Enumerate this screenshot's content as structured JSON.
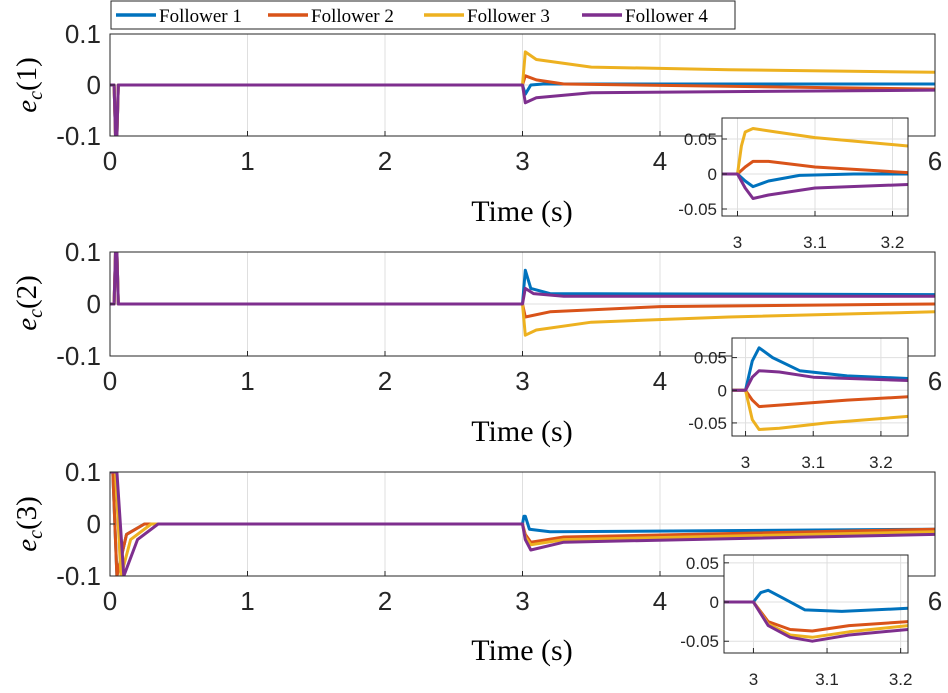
{
  "legend": {
    "entries": [
      {
        "label": "Follower 1",
        "color": "#0072BD"
      },
      {
        "label": "Follower 2",
        "color": "#D95319"
      },
      {
        "label": "Follower 3",
        "color": "#EDB120"
      },
      {
        "label": "Follower 4",
        "color": "#7E2F8E"
      }
    ]
  },
  "chart_data": [
    {
      "type": "line",
      "ylabel_main": "e",
      "ylabel_sub": "c",
      "ylabel_paren": "(1)",
      "xlabel": "Time (s)",
      "xlim": [
        0,
        6
      ],
      "ylim": [
        -0.1,
        0.1
      ],
      "xticks": [
        "0",
        "1",
        "2",
        "3",
        "4",
        "6"
      ],
      "xtick_values": [
        0,
        1,
        2,
        3,
        4,
        6
      ],
      "yticks": [
        "0.1",
        "0",
        "-0.1"
      ],
      "ytick_values": [
        0.1,
        0,
        -0.1
      ],
      "series": [
        {
          "name": "Follower 1",
          "x": [
            0,
            0.03,
            0.04,
            0.05,
            0.06,
            0.2,
            3.0,
            3.02,
            3.06,
            3.15,
            6
          ],
          "y": [
            0,
            0,
            -0.1,
            -0.1,
            0,
            0,
            0,
            -0.018,
            0,
            0.002,
            0.002
          ]
        },
        {
          "name": "Follower 2",
          "x": [
            0,
            0.03,
            0.04,
            0.05,
            0.06,
            0.2,
            3.0,
            3.02,
            3.1,
            3.3,
            6
          ],
          "y": [
            0,
            0,
            -0.1,
            -0.1,
            0,
            0,
            0,
            0.018,
            0.01,
            0.002,
            -0.008
          ]
        },
        {
          "name": "Follower 3",
          "x": [
            0,
            0.03,
            0.04,
            0.05,
            0.06,
            0.2,
            3.0,
            3.02,
            3.1,
            3.5,
            4.5,
            6
          ],
          "y": [
            0,
            0,
            -0.1,
            -0.1,
            0,
            0,
            0,
            0.065,
            0.05,
            0.035,
            0.03,
            0.025
          ]
        },
        {
          "name": "Follower 4",
          "x": [
            0,
            0.03,
            0.04,
            0.05,
            0.06,
            0.2,
            3.0,
            3.02,
            3.1,
            3.5,
            6
          ],
          "y": [
            0,
            0,
            -0.1,
            -0.1,
            0,
            0,
            0,
            -0.035,
            -0.025,
            -0.015,
            -0.01
          ]
        }
      ],
      "inset": {
        "xlim": [
          2.98,
          3.22
        ],
        "ylim": [
          -0.06,
          0.08
        ],
        "xticks": [
          "3",
          "3.1",
          "3.2"
        ],
        "xtick_values": [
          3,
          3.1,
          3.2
        ],
        "yticks": [
          "0.05",
          "0",
          "-0.05"
        ],
        "ytick_values": [
          0.05,
          0,
          -0.05
        ],
        "series": [
          {
            "name": "Follower 1",
            "x": [
              2.98,
              3.0,
              3.01,
              3.02,
              3.04,
              3.08,
              3.15,
              3.22
            ],
            "y": [
              0,
              0,
              -0.01,
              -0.018,
              -0.01,
              -0.002,
              0,
              0
            ]
          },
          {
            "name": "Follower 2",
            "x": [
              2.98,
              3.0,
              3.01,
              3.02,
              3.04,
              3.1,
              3.22
            ],
            "y": [
              0,
              0,
              0.01,
              0.018,
              0.018,
              0.01,
              0.002
            ]
          },
          {
            "name": "Follower 3",
            "x": [
              2.98,
              3.0,
              3.005,
              3.01,
              3.02,
              3.05,
              3.1,
              3.22
            ],
            "y": [
              0,
              0,
              0.04,
              0.06,
              0.065,
              0.06,
              0.052,
              0.04
            ]
          },
          {
            "name": "Follower 4",
            "x": [
              2.98,
              3.0,
              3.01,
              3.02,
              3.04,
              3.1,
              3.22
            ],
            "y": [
              0,
              0,
              -0.02,
              -0.035,
              -0.03,
              -0.02,
              -0.015
            ]
          }
        ]
      }
    },
    {
      "type": "line",
      "ylabel_main": "e",
      "ylabel_sub": "c",
      "ylabel_paren": "(2)",
      "xlabel": "Time (s)",
      "xlim": [
        0,
        6
      ],
      "ylim": [
        -0.1,
        0.1
      ],
      "xticks": [
        "0",
        "1",
        "2",
        "3",
        "4",
        "6"
      ],
      "xtick_values": [
        0,
        1,
        2,
        3,
        4,
        6
      ],
      "yticks": [
        "0.1",
        "0",
        "-0.1"
      ],
      "ytick_values": [
        0.1,
        0,
        -0.1
      ],
      "series": [
        {
          "name": "Follower 1",
          "x": [
            0,
            0.03,
            0.04,
            0.05,
            0.06,
            0.2,
            3.0,
            3.02,
            3.06,
            3.2,
            6
          ],
          "y": [
            0,
            0,
            0.1,
            0.1,
            0,
            0,
            0,
            0.065,
            0.03,
            0.02,
            0.018
          ]
        },
        {
          "name": "Follower 2",
          "x": [
            0,
            0.03,
            0.04,
            0.05,
            0.06,
            0.2,
            3.0,
            3.02,
            3.2,
            4.0,
            6
          ],
          "y": [
            0,
            0,
            0.1,
            0.1,
            0,
            0,
            0,
            -0.025,
            -0.015,
            -0.005,
            0
          ]
        },
        {
          "name": "Follower 3",
          "x": [
            0,
            0.03,
            0.04,
            0.05,
            0.06,
            0.2,
            3.0,
            3.02,
            3.1,
            3.5,
            4.5,
            6
          ],
          "y": [
            0,
            0,
            0.1,
            0.1,
            0,
            0,
            0,
            -0.06,
            -0.05,
            -0.035,
            -0.025,
            -0.015
          ]
        },
        {
          "name": "Follower 4",
          "x": [
            0,
            0.03,
            0.04,
            0.05,
            0.06,
            0.2,
            3.0,
            3.02,
            3.08,
            3.3,
            6
          ],
          "y": [
            0,
            0,
            0.1,
            0.1,
            0,
            0,
            0,
            0.03,
            0.02,
            0.015,
            0.015
          ]
        }
      ],
      "inset": {
        "xlim": [
          2.98,
          3.24
        ],
        "ylim": [
          -0.07,
          0.08
        ],
        "xticks": [
          "3",
          "3.1",
          "3.2"
        ],
        "xtick_values": [
          3,
          3.1,
          3.2
        ],
        "yticks": [
          "0.05",
          "0",
          "-0.05"
        ],
        "ytick_values": [
          0.05,
          0,
          -0.05
        ],
        "series": [
          {
            "name": "Follower 1",
            "x": [
              2.98,
              3.0,
              3.01,
              3.02,
              3.04,
              3.08,
              3.15,
              3.24
            ],
            "y": [
              0,
              0,
              0.045,
              0.065,
              0.05,
              0.03,
              0.022,
              0.018
            ]
          },
          {
            "name": "Follower 2",
            "x": [
              2.98,
              3.0,
              3.01,
              3.02,
              3.06,
              3.15,
              3.24
            ],
            "y": [
              0,
              0,
              -0.015,
              -0.025,
              -0.022,
              -0.015,
              -0.01
            ]
          },
          {
            "name": "Follower 3",
            "x": [
              2.98,
              3.0,
              3.01,
              3.02,
              3.05,
              3.12,
              3.24
            ],
            "y": [
              0,
              0,
              -0.045,
              -0.06,
              -0.058,
              -0.05,
              -0.04
            ]
          },
          {
            "name": "Follower 4",
            "x": [
              2.98,
              3.0,
              3.01,
              3.02,
              3.05,
              3.1,
              3.24
            ],
            "y": [
              0,
              0,
              0.02,
              0.03,
              0.028,
              0.02,
              0.015
            ]
          }
        ]
      }
    },
    {
      "type": "line",
      "ylabel_main": "e",
      "ylabel_sub": "c",
      "ylabel_paren": "(3)",
      "xlabel": "Time (s)",
      "xlim": [
        0,
        6
      ],
      "ylim": [
        -0.1,
        0.1
      ],
      "xticks": [
        "0",
        "1",
        "2",
        "3",
        "4",
        "6"
      ],
      "xtick_values": [
        0,
        1,
        2,
        3,
        4,
        6
      ],
      "yticks": [
        "0.1",
        "0",
        "-0.1"
      ],
      "ytick_values": [
        0.1,
        0,
        -0.1
      ],
      "series": [
        {
          "name": "Follower 1",
          "x": [
            0,
            0.02,
            0.05,
            0.12,
            0.25,
            3.0,
            3.01,
            3.02,
            3.05,
            3.2,
            6
          ],
          "y": [
            0.1,
            0.1,
            -0.1,
            -0.02,
            0,
            0,
            0.015,
            0.015,
            -0.01,
            -0.015,
            -0.01
          ]
        },
        {
          "name": "Follower 2",
          "x": [
            0,
            0.02,
            0.05,
            0.12,
            0.25,
            3.0,
            3.02,
            3.06,
            3.3,
            6
          ],
          "y": [
            0.1,
            0.1,
            -0.1,
            -0.02,
            0,
            0,
            -0.02,
            -0.035,
            -0.025,
            -0.01
          ]
        },
        {
          "name": "Follower 3",
          "x": [
            0,
            0.04,
            0.08,
            0.15,
            0.3,
            3.0,
            3.02,
            3.06,
            3.3,
            6
          ],
          "y": [
            0.1,
            0.1,
            -0.1,
            -0.03,
            0,
            0,
            -0.025,
            -0.04,
            -0.03,
            -0.015
          ]
        },
        {
          "name": "Follower 4",
          "x": [
            0,
            0.05,
            0.1,
            0.2,
            0.35,
            3.0,
            3.02,
            3.06,
            3.3,
            6
          ],
          "y": [
            0.1,
            0.1,
            -0.1,
            -0.03,
            0,
            0,
            -0.03,
            -0.05,
            -0.035,
            -0.02
          ]
        }
      ],
      "inset": {
        "xlim": [
          2.96,
          3.21
        ],
        "ylim": [
          -0.065,
          0.06
        ],
        "xticks": [
          "3",
          "3.1",
          "3.2"
        ],
        "xtick_values": [
          3,
          3.1,
          3.2
        ],
        "yticks": [
          "0.05",
          "0",
          "-0.05"
        ],
        "ytick_values": [
          0.05,
          0,
          -0.05
        ],
        "series": [
          {
            "name": "Follower 1",
            "x": [
              2.96,
              3.0,
              3.01,
              3.02,
              3.04,
              3.07,
              3.12,
              3.21
            ],
            "y": [
              0,
              0,
              0.012,
              0.015,
              0.005,
              -0.01,
              -0.012,
              -0.008
            ]
          },
          {
            "name": "Follower 2",
            "x": [
              2.96,
              3.0,
              3.02,
              3.05,
              3.08,
              3.13,
              3.21
            ],
            "y": [
              0,
              0,
              -0.025,
              -0.035,
              -0.037,
              -0.03,
              -0.025
            ]
          },
          {
            "name": "Follower 3",
            "x": [
              2.96,
              3.0,
              3.02,
              3.05,
              3.08,
              3.13,
              3.21
            ],
            "y": [
              0,
              0,
              -0.028,
              -0.042,
              -0.045,
              -0.038,
              -0.03
            ]
          },
          {
            "name": "Follower 4",
            "x": [
              2.96,
              3.0,
              3.02,
              3.05,
              3.08,
              3.13,
              3.21
            ],
            "y": [
              0,
              0,
              -0.03,
              -0.045,
              -0.05,
              -0.042,
              -0.035
            ]
          }
        ]
      }
    }
  ]
}
